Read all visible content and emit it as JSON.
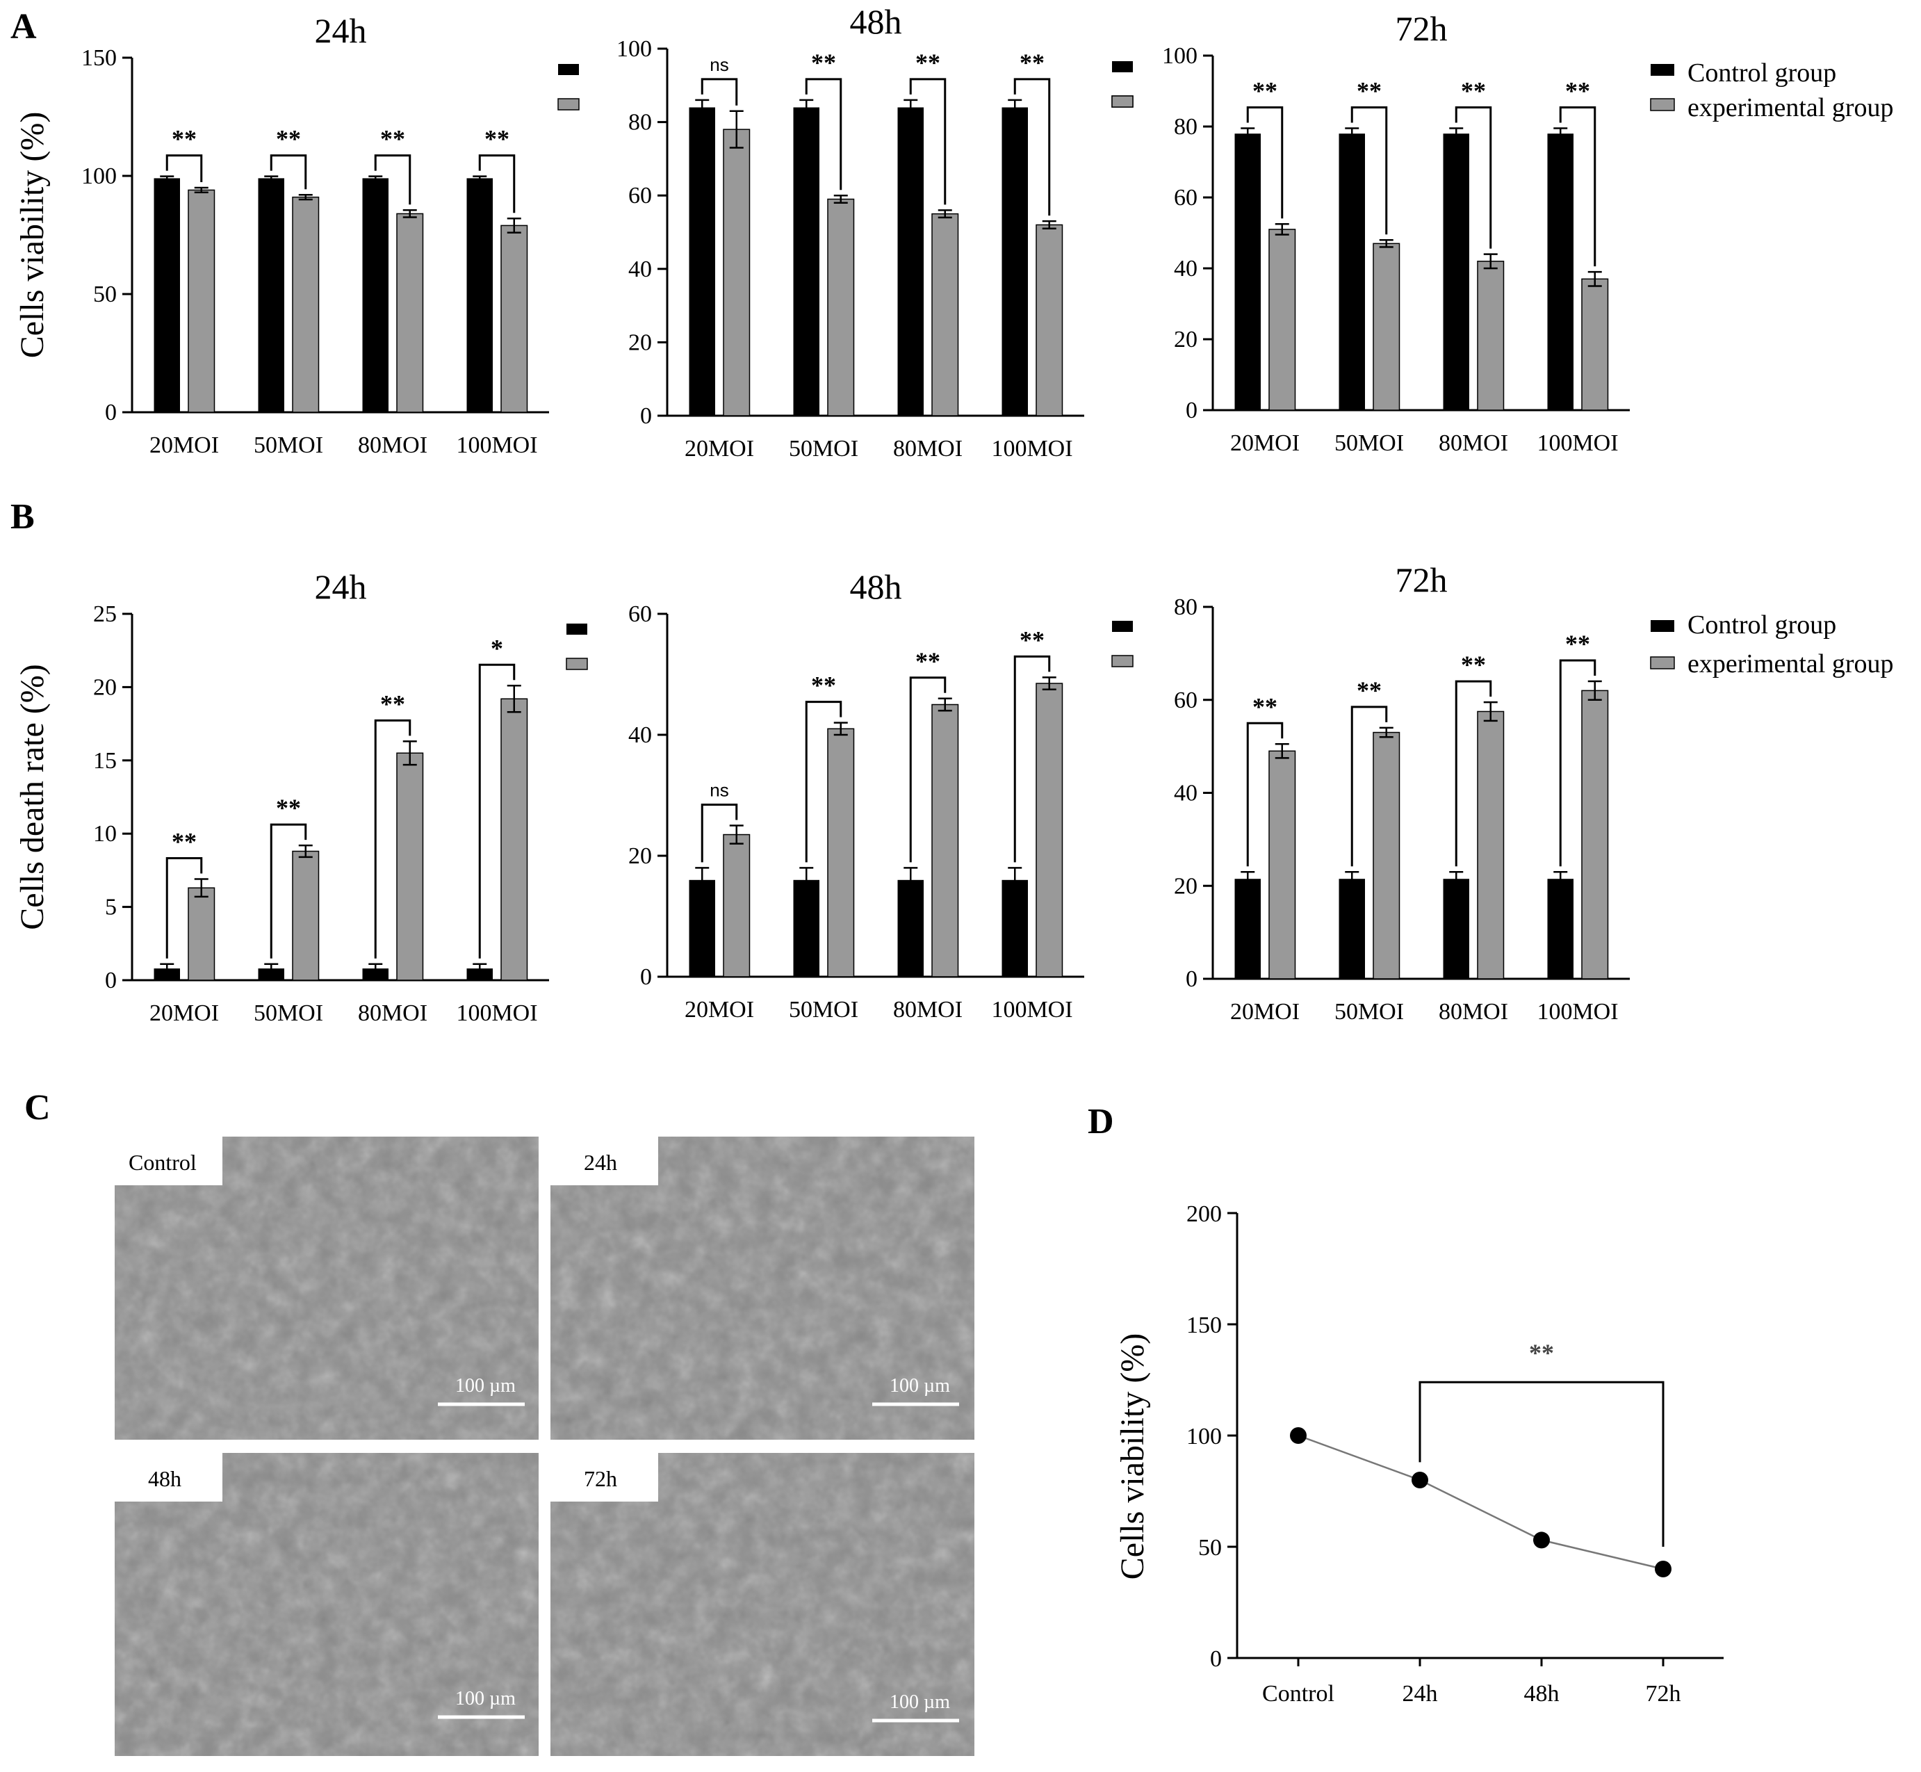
{
  "figure": {
    "panel_letters": [
      "A",
      "B",
      "C",
      "D"
    ],
    "colors": {
      "control": "#000000",
      "experimental": "#999999",
      "axis": "#000000"
    },
    "legend": {
      "control_label": "Control group",
      "experimental_label": "experimental group"
    },
    "micrographs": {
      "labels": [
        "Control",
        "24h",
        "48h",
        "72h"
      ],
      "scale_bar_label": "100 µm"
    }
  },
  "chart_data": [
    {
      "id": "A-24h",
      "panel": "A",
      "type": "bar",
      "title": "24h",
      "ylabel": "Cells viability (%)",
      "ylim": [
        0,
        150
      ],
      "yticks": [
        0,
        50,
        100,
        150
      ],
      "categories": [
        "20MOI",
        "50MOI",
        "80MOI",
        "100MOI"
      ],
      "series": [
        {
          "values": [
            99,
            99,
            99,
            99
          ],
          "errors": [
            0.8,
            0.8,
            0.8,
            0.8
          ]
        },
        {
          "values": [
            94,
            91,
            84,
            79
          ],
          "errors": [
            1,
            1,
            1.5,
            3
          ]
        }
      ],
      "significance": [
        "**",
        "**",
        "**",
        "**"
      ]
    },
    {
      "id": "A-48h",
      "panel": "A",
      "type": "bar",
      "title": "48h",
      "ylabel": "",
      "ylim": [
        0,
        100
      ],
      "yticks": [
        0,
        20,
        40,
        60,
        80,
        100
      ],
      "categories": [
        "20MOI",
        "50MOI",
        "80MOI",
        "100MOI"
      ],
      "series": [
        {
          "values": [
            84,
            84,
            84,
            84
          ],
          "errors": [
            2,
            2,
            2,
            2
          ]
        },
        {
          "values": [
            78,
            59,
            55,
            52
          ],
          "errors": [
            5,
            1,
            1,
            1
          ]
        }
      ],
      "significance": [
        "ns",
        "**",
        "**",
        "**"
      ]
    },
    {
      "id": "A-72h",
      "panel": "A",
      "type": "bar",
      "title": "72h",
      "ylabel": "",
      "ylim": [
        0,
        100
      ],
      "yticks": [
        0,
        20,
        40,
        60,
        80,
        100
      ],
      "categories": [
        "20MOI",
        "50MOI",
        "80MOI",
        "100MOI"
      ],
      "series": [
        {
          "name": "Control group",
          "values": [
            78,
            78,
            78,
            78
          ],
          "errors": [
            1.5,
            1.5,
            1.5,
            1.5
          ]
        },
        {
          "name": "experimental group",
          "values": [
            51,
            47,
            42,
            37
          ],
          "errors": [
            1.5,
            1,
            2,
            2
          ]
        }
      ],
      "significance": [
        "**",
        "**",
        "**",
        "**"
      ]
    },
    {
      "id": "B-24h",
      "panel": "B",
      "type": "bar",
      "title": "24h",
      "ylabel": "Cells death rate (%)",
      "ylim": [
        0,
        25
      ],
      "yticks": [
        0,
        5,
        10,
        15,
        20,
        25
      ],
      "categories": [
        "20MOI",
        "50MOI",
        "80MOI",
        "100MOI"
      ],
      "series": [
        {
          "values": [
            0.8,
            0.8,
            0.8,
            0.8
          ],
          "errors": [
            0.3,
            0.3,
            0.3,
            0.3
          ]
        },
        {
          "values": [
            6.3,
            8.8,
            15.5,
            19.2
          ],
          "errors": [
            0.6,
            0.4,
            0.8,
            0.9
          ]
        }
      ],
      "significance": [
        "**",
        "**",
        "**",
        "*"
      ]
    },
    {
      "id": "B-48h",
      "panel": "B",
      "type": "bar",
      "title": "48h",
      "ylabel": "",
      "ylim": [
        0,
        60
      ],
      "yticks": [
        0,
        20,
        40,
        60
      ],
      "categories": [
        "20MOI",
        "50MOI",
        "80MOI",
        "100MOI"
      ],
      "series": [
        {
          "values": [
            16,
            16,
            16,
            16
          ],
          "errors": [
            2,
            2,
            2,
            2
          ]
        },
        {
          "values": [
            23.5,
            41,
            45,
            48.5
          ],
          "errors": [
            1.5,
            1,
            1,
            1
          ]
        }
      ],
      "significance": [
        "ns",
        "**",
        "**",
        "**"
      ]
    },
    {
      "id": "B-72h",
      "panel": "B",
      "type": "bar",
      "title": "72h",
      "ylabel": "",
      "ylim": [
        0,
        80
      ],
      "yticks": [
        0,
        20,
        40,
        60,
        80
      ],
      "categories": [
        "20MOI",
        "50MOI",
        "80MOI",
        "100MOI"
      ],
      "series": [
        {
          "name": "Control group",
          "values": [
            21.5,
            21.5,
            21.5,
            21.5
          ],
          "errors": [
            1.5,
            1.5,
            1.5,
            1.5
          ]
        },
        {
          "name": "experimental group",
          "values": [
            49,
            53,
            57.5,
            62
          ],
          "errors": [
            1.5,
            1,
            2,
            2
          ]
        }
      ],
      "significance": [
        "**",
        "**",
        "**",
        "**"
      ]
    },
    {
      "id": "D",
      "panel": "D",
      "type": "line",
      "title": "",
      "ylabel": "Cells viability (%)",
      "ylim": [
        0,
        200
      ],
      "yticks": [
        0,
        50,
        100,
        150,
        200
      ],
      "categories": [
        "Control",
        "24h",
        "48h",
        "72h"
      ],
      "values": [
        100,
        80,
        53,
        40
      ],
      "significance": {
        "from": "24h",
        "to": "72h",
        "label": "**"
      }
    }
  ]
}
